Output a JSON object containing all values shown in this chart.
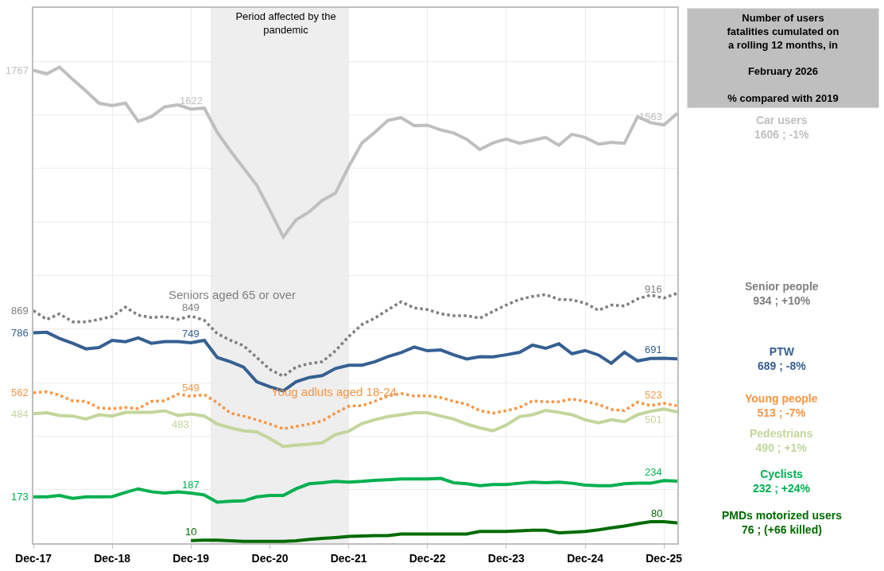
{
  "chart_data": {
    "type": "line",
    "title": "Number of users\nfatalities cumulated on\na rolling 12 months, in\n\nFebruary 2026\n\n% compared with 2019",
    "x": [
      "2017-12",
      "2018-02",
      "2018-04",
      "2018-06",
      "2018-08",
      "2018-10",
      "2018-12",
      "2019-02",
      "2019-04",
      "2019-06",
      "2019-08",
      "2019-10",
      "2019-12",
      "2020-02",
      "2020-04",
      "2020-06",
      "2020-08",
      "2020-10",
      "2020-12",
      "2021-02",
      "2021-04",
      "2021-06",
      "2021-08",
      "2021-10",
      "2021-12",
      "2022-02",
      "2022-04",
      "2022-06",
      "2022-08",
      "2022-10",
      "2022-12",
      "2023-02",
      "2023-04",
      "2023-06",
      "2023-08",
      "2023-10",
      "2023-12",
      "2024-02",
      "2024-04",
      "2024-06",
      "2024-08",
      "2024-10",
      "2024-12",
      "2025-02",
      "2025-04",
      "2025-06",
      "2025-08",
      "2025-10",
      "2025-12",
      "2026-02"
    ],
    "xlim": [
      "2017-12",
      "2026-02"
    ],
    "xticks": [
      {
        "value": "2017-12",
        "label": "Dec-17"
      },
      {
        "value": "2018-12",
        "label": "Dec-18"
      },
      {
        "value": "2019-12",
        "label": "Dec-19"
      },
      {
        "value": "2020-12",
        "label": "Dec-20"
      },
      {
        "value": "2021-12",
        "label": "Dec-21"
      },
      {
        "value": "2022-12",
        "label": "Dec-22"
      },
      {
        "value": "2023-12",
        "label": "Dec-23"
      },
      {
        "value": "2024-12",
        "label": "Dec-24"
      },
      {
        "value": "2025-12",
        "label": "Dec-25"
      }
    ],
    "ylim": [
      0,
      2000
    ],
    "yticks": [
      {
        "value": 0,
        "label": null
      },
      {
        "value": 200,
        "label": null
      },
      {
        "value": 400,
        "label": null
      },
      {
        "value": 600,
        "label": null
      },
      {
        "value": 800,
        "label": null
      },
      {
        "value": 1000,
        "label": null
      },
      {
        "value": 1200,
        "label": null
      },
      {
        "value": 1400,
        "label": null
      },
      {
        "value": 1600,
        "label": null
      },
      {
        "value": 1800,
        "label": null
      }
    ],
    "grid": true,
    "tick_labels": "x",
    "series": [
      {
        "name": "Car users\n1606 ; -1%",
        "color": "#bfbfbf",
        "line_style": "solid",
        "values": [
          1767,
          1754,
          1779,
          1733,
          1690,
          1644,
          1635,
          1644,
          1576,
          1594,
          1630,
          1638,
          1622,
          1626,
          1535,
          1466,
          1402,
          1338,
          1244,
          1144,
          1208,
          1238,
          1281,
          1308,
          1407,
          1496,
          1535,
          1580,
          1590,
          1560,
          1562,
          1544,
          1533,
          1509,
          1471,
          1496,
          1510,
          1494,
          1505,
          1516,
          1487,
          1528,
          1516,
          1491,
          1498,
          1494,
          1594,
          1571,
          1563,
          1606
        ],
        "value_labels": [
          "1767",
          null,
          null,
          null,
          null,
          null,
          null,
          null,
          null,
          null,
          null,
          null,
          "1622",
          null,
          null,
          null,
          null,
          null,
          null,
          null,
          null,
          null,
          null,
          null,
          null,
          null,
          null,
          null,
          null,
          null,
          null,
          null,
          null,
          null,
          null,
          null,
          null,
          null,
          null,
          null,
          null,
          null,
          null,
          null,
          null,
          null,
          null,
          null,
          "1563",
          null
        ]
      },
      {
        "name": "Senior people\n934 ; +10%",
        "color": "#7f7f7f",
        "line_style": "dotted",
        "values": [
          869,
          836,
          857,
          827,
          827,
          836,
          847,
          882,
          852,
          843,
          847,
          836,
          849,
          833,
          783,
          758,
          738,
          694,
          649,
          624,
          658,
          671,
          678,
          719,
          772,
          817,
          841,
          872,
          902,
          879,
          873,
          857,
          850,
          850,
          841,
          866,
          890,
          911,
          922,
          929,
          911,
          909,
          897,
          870,
          890,
          886,
          913,
          927,
          916,
          934
        ],
        "value_labels": [
          "869",
          null,
          null,
          null,
          null,
          null,
          null,
          null,
          null,
          null,
          null,
          null,
          "849",
          null,
          null,
          null,
          null,
          null,
          null,
          null,
          null,
          null,
          null,
          null,
          null,
          null,
          null,
          null,
          null,
          null,
          null,
          null,
          null,
          null,
          null,
          null,
          null,
          null,
          null,
          null,
          null,
          null,
          null,
          null,
          null,
          null,
          null,
          null,
          "916",
          null
        ]
      },
      {
        "name": "PTW\n689 ; -8%",
        "color": "#356092",
        "line_style": "solid",
        "values": [
          786,
          788,
          765,
          747,
          726,
          731,
          758,
          753,
          767,
          747,
          753,
          753,
          749,
          758,
          694,
          678,
          658,
          603,
          584,
          569,
          603,
          619,
          626,
          653,
          665,
          665,
          678,
          697,
          712,
          733,
          719,
          722,
          704,
          688,
          697,
          696,
          704,
          713,
          740,
          728,
          745,
          708,
          720,
          703,
          672,
          713,
          681,
          690,
          691,
          689
        ],
        "value_labels": [
          "786",
          null,
          null,
          null,
          null,
          null,
          null,
          null,
          null,
          null,
          null,
          null,
          "749",
          null,
          null,
          null,
          null,
          null,
          null,
          null,
          null,
          null,
          null,
          null,
          null,
          null,
          null,
          null,
          null,
          null,
          null,
          null,
          null,
          null,
          null,
          null,
          null,
          null,
          null,
          null,
          null,
          null,
          null,
          null,
          null,
          null,
          null,
          null,
          "691",
          null
        ]
      },
      {
        "name": "Young people\n513 ; -7%",
        "color": "#f79646",
        "line_style": "dotted",
        "values": [
          562,
          566,
          553,
          532,
          530,
          505,
          502,
          507,
          503,
          530,
          532,
          557,
          549,
          555,
          525,
          486,
          475,
          461,
          445,
          427,
          436,
          445,
          457,
          486,
          512,
          514,
          530,
          550,
          559,
          550,
          551,
          544,
          530,
          519,
          495,
          486,
          495,
          507,
          532,
          528,
          528,
          539,
          530,
          518,
          500,
          495,
          527,
          514,
          523,
          513
        ],
        "value_labels": [
          "562",
          null,
          null,
          null,
          null,
          null,
          null,
          null,
          null,
          null,
          null,
          null,
          "549",
          null,
          null,
          null,
          null,
          null,
          null,
          null,
          null,
          null,
          null,
          null,
          null,
          null,
          null,
          null,
          null,
          null,
          null,
          null,
          null,
          null,
          null,
          null,
          null,
          null,
          null,
          null,
          null,
          null,
          null,
          null,
          null,
          null,
          null,
          null,
          "523",
          null
        ]
      },
      {
        "name": "Pedestrians\n490 ; +1%",
        "color": "#c3d69b",
        "line_style": "solid",
        "values": [
          484,
          487,
          477,
          475,
          464,
          480,
          475,
          489,
          489,
          489,
          495,
          477,
          483,
          475,
          445,
          431,
          420,
          416,
          391,
          361,
          366,
          370,
          375,
          406,
          418,
          447,
          461,
          473,
          480,
          487,
          487,
          475,
          464,
          445,
          431,
          420,
          441,
          473,
          480,
          496,
          489,
          480,
          461,
          450,
          461,
          454,
          480,
          493,
          501,
          490
        ],
        "value_labels": [
          "484",
          null,
          null,
          null,
          null,
          null,
          null,
          null,
          null,
          null,
          null,
          null,
          "483",
          null,
          null,
          null,
          null,
          null,
          null,
          null,
          null,
          null,
          null,
          null,
          null,
          null,
          null,
          null,
          null,
          null,
          null,
          null,
          null,
          null,
          null,
          null,
          null,
          null,
          null,
          null,
          null,
          null,
          null,
          null,
          null,
          null,
          null,
          null,
          "501",
          null
        ]
      },
      {
        "name": "Cyclists\n232 ; +24%",
        "color": "#00b050",
        "line_style": "solid",
        "values": [
          173,
          173,
          178,
          167,
          173,
          173,
          174,
          190,
          203,
          192,
          187,
          192,
          187,
          180,
          153,
          157,
          158,
          173,
          178,
          178,
          203,
          222,
          226,
          231,
          228,
          231,
          235,
          237,
          240,
          240,
          240,
          242,
          226,
          222,
          215,
          219,
          219,
          224,
          228,
          226,
          228,
          224,
          217,
          215,
          215,
          222,
          224,
          224,
          234,
          232
        ],
        "value_labels": [
          "173",
          null,
          null,
          null,
          null,
          null,
          null,
          null,
          null,
          null,
          null,
          null,
          "187",
          null,
          null,
          null,
          null,
          null,
          null,
          null,
          null,
          null,
          null,
          null,
          null,
          null,
          null,
          null,
          null,
          null,
          null,
          null,
          null,
          null,
          null,
          null,
          null,
          null,
          null,
          null,
          null,
          null,
          null,
          null,
          null,
          null,
          null,
          null,
          "234",
          null
        ]
      },
      {
        "name": "PMDs motorized users\n76 ; (+66 killed)",
        "color": "#006b00",
        "line_style": "solid",
        "values": [
          null,
          null,
          null,
          null,
          null,
          null,
          null,
          null,
          null,
          null,
          null,
          null,
          10,
          11,
          11,
          9,
          7,
          7,
          7,
          7,
          9,
          14,
          18,
          21,
          25,
          27,
          28,
          28,
          34,
          34,
          34,
          34,
          34,
          34,
          44,
          44,
          44,
          46,
          48,
          48,
          39,
          41,
          44,
          50,
          57,
          64,
          73,
          80,
          80,
          76
        ],
        "value_labels": [
          null,
          null,
          null,
          null,
          null,
          null,
          null,
          null,
          null,
          null,
          null,
          null,
          "10",
          null,
          null,
          null,
          null,
          null,
          null,
          null,
          null,
          null,
          null,
          null,
          null,
          null,
          null,
          null,
          null,
          null,
          null,
          null,
          null,
          null,
          null,
          null,
          null,
          null,
          null,
          null,
          null,
          null,
          null,
          null,
          null,
          null,
          null,
          null,
          "80",
          null
        ]
      }
    ],
    "bands": [
      {
        "axis": "x",
        "from": "2020-03",
        "to": "2021-12",
        "label": "Period affected by the\npandemic",
        "color": "#d9d9d9"
      }
    ],
    "annotations": [
      "Seniors aged 65 or over",
      "Youg adluts aged 18-24"
    ]
  }
}
